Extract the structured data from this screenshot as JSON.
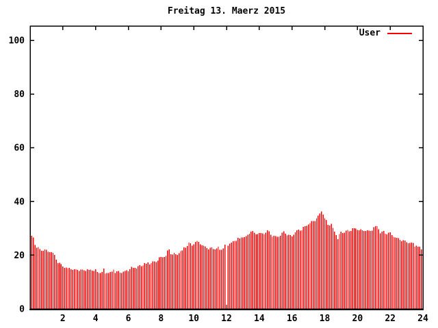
{
  "window": {
    "background": "#ffffff"
  },
  "chart_data": {
    "type": "bar",
    "subtype": "gnuplot-impulses",
    "title": "Freitag 13. Maerz 2015",
    "xlabel": "",
    "ylabel": "",
    "x_unit": "hour of day",
    "xlim": [
      0,
      24
    ],
    "ylim": [
      0,
      105
    ],
    "x_ticks": [
      2,
      4,
      6,
      8,
      10,
      12,
      14,
      16,
      18,
      20,
      22,
      24
    ],
    "y_ticks": [
      0,
      20,
      40,
      60,
      80,
      100
    ],
    "grid": false,
    "legend_position": "top-right-inside",
    "border_color": "#000000",
    "text_color": "#000000",
    "series": [
      {
        "name": "User",
        "color": "#ff0000",
        "sample_step_hours": 0.1,
        "gap_hours": [
          12.0
        ],
        "anchors_hour_value": [
          [
            0.1,
            26.8
          ],
          [
            0.15,
            27.3
          ],
          [
            0.25,
            25.0
          ],
          [
            0.35,
            23.4
          ],
          [
            0.5,
            22.6
          ],
          [
            0.7,
            21.9
          ],
          [
            1.0,
            21.6
          ],
          [
            1.3,
            21.2
          ],
          [
            1.5,
            19.8
          ],
          [
            1.7,
            17.3
          ],
          [
            1.9,
            16.3
          ],
          [
            2.1,
            15.3
          ],
          [
            2.4,
            14.8
          ],
          [
            3.0,
            14.6
          ],
          [
            3.6,
            14.5
          ],
          [
            4.0,
            14.4
          ],
          [
            4.1,
            13.7
          ],
          [
            4.4,
            13.6
          ],
          [
            4.5,
            14.8
          ],
          [
            4.6,
            13.6
          ],
          [
            5.0,
            13.7
          ],
          [
            5.1,
            14.8
          ],
          [
            5.2,
            13.6
          ],
          [
            5.6,
            13.7
          ],
          [
            6.0,
            14.3
          ],
          [
            6.2,
            15.2
          ],
          [
            6.5,
            15.5
          ],
          [
            6.8,
            16.3
          ],
          [
            7.1,
            16.6
          ],
          [
            7.4,
            17.1
          ],
          [
            7.7,
            17.9
          ],
          [
            8.0,
            19.3
          ],
          [
            8.3,
            19.8
          ],
          [
            8.45,
            22.2
          ],
          [
            8.6,
            20.5
          ],
          [
            8.9,
            20.3
          ],
          [
            9.1,
            20.8
          ],
          [
            9.3,
            21.6
          ],
          [
            9.5,
            23.2
          ],
          [
            9.7,
            24.4
          ],
          [
            9.9,
            23.6
          ],
          [
            10.1,
            24.6
          ],
          [
            10.3,
            25.0
          ],
          [
            10.5,
            23.4
          ],
          [
            10.8,
            22.9
          ],
          [
            11.0,
            22.4
          ],
          [
            11.3,
            22.2
          ],
          [
            11.5,
            22.8
          ],
          [
            11.7,
            22.3
          ],
          [
            11.9,
            23.4
          ],
          [
            12.0,
            23.8
          ],
          [
            12.2,
            24.4
          ],
          [
            12.5,
            25.4
          ],
          [
            12.8,
            26.2
          ],
          [
            13.0,
            26.6
          ],
          [
            13.3,
            27.3
          ],
          [
            13.5,
            28.8
          ],
          [
            13.7,
            28.2
          ],
          [
            14.0,
            27.7
          ],
          [
            14.3,
            28.3
          ],
          [
            14.5,
            29.0
          ],
          [
            14.8,
            27.1
          ],
          [
            15.0,
            26.9
          ],
          [
            15.3,
            27.4
          ],
          [
            15.5,
            28.8
          ],
          [
            15.8,
            27.5
          ],
          [
            16.0,
            27.2
          ],
          [
            16.3,
            28.7
          ],
          [
            16.6,
            29.7
          ],
          [
            16.9,
            31.0
          ],
          [
            17.2,
            32.3
          ],
          [
            17.5,
            33.5
          ],
          [
            17.7,
            35.2
          ],
          [
            17.8,
            36.5
          ],
          [
            17.9,
            35.3
          ],
          [
            18.0,
            33.5
          ],
          [
            18.2,
            31.6
          ],
          [
            18.4,
            31.2
          ],
          [
            18.6,
            29.2
          ],
          [
            18.8,
            26.4
          ],
          [
            19.0,
            28.3
          ],
          [
            19.3,
            29.0
          ],
          [
            19.6,
            29.4
          ],
          [
            20.0,
            29.7
          ],
          [
            20.3,
            29.2
          ],
          [
            20.6,
            29.0
          ],
          [
            20.9,
            29.4
          ],
          [
            21.2,
            30.7
          ],
          [
            21.4,
            28.7
          ],
          [
            21.7,
            28.4
          ],
          [
            22.0,
            28.1
          ],
          [
            22.2,
            27.2
          ],
          [
            22.4,
            26.3
          ],
          [
            22.7,
            25.6
          ],
          [
            23.0,
            24.8
          ],
          [
            23.3,
            24.2
          ],
          [
            23.6,
            23.5
          ],
          [
            23.8,
            22.7
          ],
          [
            24.0,
            21.8
          ]
        ]
      }
    ]
  }
}
